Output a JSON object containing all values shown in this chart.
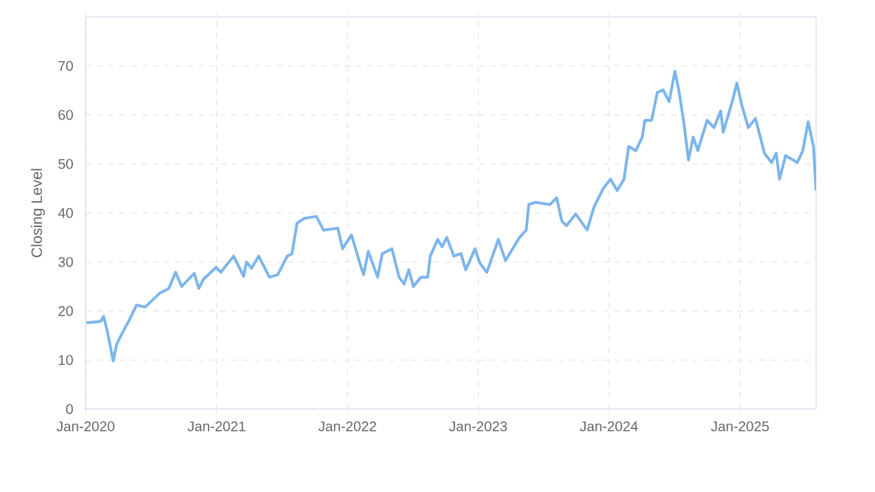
{
  "chart_data": {
    "type": "line",
    "ylabel": "Closing Level",
    "color": "#7cb5ec",
    "grid": true,
    "line_style": "solid",
    "xlim": [
      "2020-01-01",
      "2025-08-01"
    ],
    "ylim": [
      0,
      80
    ],
    "xticks": [
      {
        "value": "2020-01-01",
        "label": "Jan-2020"
      },
      {
        "value": "2021-01-01",
        "label": "Jan-2021"
      },
      {
        "value": "2022-01-01",
        "label": "Jan-2022"
      },
      {
        "value": "2023-01-01",
        "label": "Jan-2023"
      },
      {
        "value": "2024-01-01",
        "label": "Jan-2024"
      },
      {
        "value": "2025-01-01",
        "label": "Jan-2025"
      }
    ],
    "yticks": [
      0,
      10,
      20,
      30,
      40,
      50,
      60,
      70
    ],
    "x": [
      "2020-01-03",
      "2020-02-12",
      "2020-02-20",
      "2020-03-01",
      "2020-03-18",
      "2020-03-27",
      "2020-04-12",
      "2020-04-30",
      "2020-05-22",
      "2020-06-15",
      "2020-07-25",
      "2020-08-20",
      "2020-09-08",
      "2020-09-25",
      "2020-10-30",
      "2020-11-12",
      "2020-11-25",
      "2020-12-30",
      "2021-01-12",
      "2021-02-17",
      "2021-03-17",
      "2021-03-25",
      "2021-04-08",
      "2021-04-28",
      "2021-05-28",
      "2021-06-20",
      "2021-07-17",
      "2021-07-30",
      "2021-08-13",
      "2021-09-02",
      "2021-10-06",
      "2021-10-26",
      "2021-12-05",
      "2021-12-18",
      "2022-01-12",
      "2022-02-08",
      "2022-02-15",
      "2022-02-28",
      "2022-03-26",
      "2022-04-08",
      "2022-05-05",
      "2022-05-25",
      "2022-06-08",
      "2022-06-21",
      "2022-07-04",
      "2022-07-25",
      "2022-08-13",
      "2022-08-20",
      "2022-09-10",
      "2022-09-22",
      "2022-10-05",
      "2022-10-25",
      "2022-11-14",
      "2022-11-27",
      "2022-12-23",
      "2023-01-05",
      "2023-01-25",
      "2023-02-26",
      "2023-03-18",
      "2023-04-26",
      "2023-05-15",
      "2023-05-22",
      "2023-06-10",
      "2023-07-20",
      "2023-08-08",
      "2023-08-22",
      "2023-09-04",
      "2023-09-30",
      "2023-11-01",
      "2023-11-20",
      "2023-12-16",
      "2024-01-05",
      "2024-01-24",
      "2024-02-12",
      "2024-02-25",
      "2024-03-16",
      "2024-04-03",
      "2024-04-10",
      "2024-04-29",
      "2024-05-15",
      "2024-05-31",
      "2024-06-17",
      "2024-07-03",
      "2024-07-15",
      "2024-07-28",
      "2024-08-10",
      "2024-08-23",
      "2024-09-05",
      "2024-10-01",
      "2024-10-20",
      "2024-11-08",
      "2024-11-15",
      "2024-12-10",
      "2024-12-23",
      "2025-01-05",
      "2025-01-24",
      "2025-02-13",
      "2025-03-10",
      "2025-03-30",
      "2025-04-12",
      "2025-04-21",
      "2025-05-08",
      "2025-06-10",
      "2025-06-25",
      "2025-07-10",
      "2025-07-25",
      "2025-08-01"
    ],
    "values": [
      17.6,
      17.9,
      18.9,
      16,
      9.8,
      13.1,
      15.5,
      17.9,
      21.2,
      20.8,
      23.6,
      24.6,
      27.9,
      25,
      27.7,
      24.6,
      26.5,
      28.9,
      27.9,
      31.2,
      27.1,
      30,
      28.7,
      31.2,
      26.9,
      27.4,
      31.2,
      31.7,
      37.9,
      38.9,
      39.3,
      36.5,
      36.9,
      32.7,
      35.5,
      28.9,
      27.4,
      32.2,
      26.9,
      31.7,
      32.7,
      26.9,
      25.5,
      28.4,
      25,
      26.9,
      26.9,
      31.2,
      34.6,
      33.1,
      35,
      31.2,
      31.7,
      28.4,
      32.7,
      29.8,
      27.9,
      34.6,
      30.3,
      35,
      36.5,
      41.7,
      42.2,
      41.7,
      43.1,
      38.4,
      37.4,
      39.8,
      36.5,
      41.2,
      45,
      46.9,
      44.6,
      46.9,
      53.6,
      52.7,
      55.5,
      58.9,
      58.9,
      64.6,
      65.1,
      62.7,
      68.9,
      64.6,
      58.4,
      50.8,
      55.5,
      52.7,
      58.9,
      57.4,
      60.8,
      56.5,
      62.7,
      66.5,
      62.2,
      57.4,
      59.3,
      52.2,
      50.3,
      52.2,
      46.9,
      51.7,
      50.3,
      52.7,
      58.6,
      53.6,
      44.6
    ]
  }
}
